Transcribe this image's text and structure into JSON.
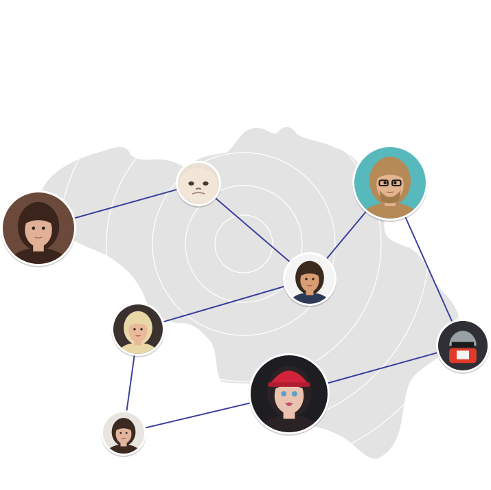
{
  "map": {
    "region": "belgium-map",
    "fill_color": "#e3e3e3",
    "ring_color": "#ffffff"
  },
  "network": {
    "link_color": "#3b3f9e",
    "border_color": "#ffffff",
    "people": [
      {
        "id": "woman-brunette",
        "icon": "portrait-woman-brunette",
        "bg": "#6b4a3c",
        "skin": "#e0b196",
        "hair": "#3a241b"
      },
      {
        "id": "grumpy-cat",
        "icon": "cat-face",
        "bg": "#e9dfd2",
        "skin": "#f1e6d8",
        "hair": "#d9c7b2"
      },
      {
        "id": "man-glasses",
        "icon": "portrait-man-glasses",
        "bg": "#58b9bc",
        "skin": "#e2b48f",
        "hair": "#b58a57"
      },
      {
        "id": "man-center",
        "icon": "portrait-man-short-hair",
        "bg": "#f4f4f4",
        "skin": "#d99d74",
        "hair": "#3a2a1e"
      },
      {
        "id": "woman-blonde",
        "icon": "portrait-woman-blonde",
        "bg": "#3b3230",
        "skin": "#e8b99a",
        "hair": "#e8d8a8"
      },
      {
        "id": "robot-helmet",
        "icon": "robot-helmet",
        "bg": "#2f2f35",
        "skin": "#e23a2a",
        "hair": "#9aa0a8"
      },
      {
        "id": "woman-red-cap",
        "icon": "portrait-woman-cap",
        "bg": "#1d1d22",
        "skin": "#e9c2b0",
        "hair": "#2a2224"
      },
      {
        "id": "man-young",
        "icon": "portrait-man-young",
        "bg": "#e8e4df",
        "skin": "#e2b69c",
        "hair": "#3b2a22"
      }
    ],
    "links": [
      [
        "woman-brunette",
        "grumpy-cat"
      ],
      [
        "grumpy-cat",
        "man-center"
      ],
      [
        "man-center",
        "man-glasses"
      ],
      [
        "man-glasses",
        "robot-helmet"
      ],
      [
        "man-center",
        "woman-blonde"
      ],
      [
        "woman-blonde",
        "man-young"
      ],
      [
        "man-young",
        "woman-red-cap"
      ],
      [
        "woman-red-cap",
        "robot-helmet"
      ]
    ]
  }
}
